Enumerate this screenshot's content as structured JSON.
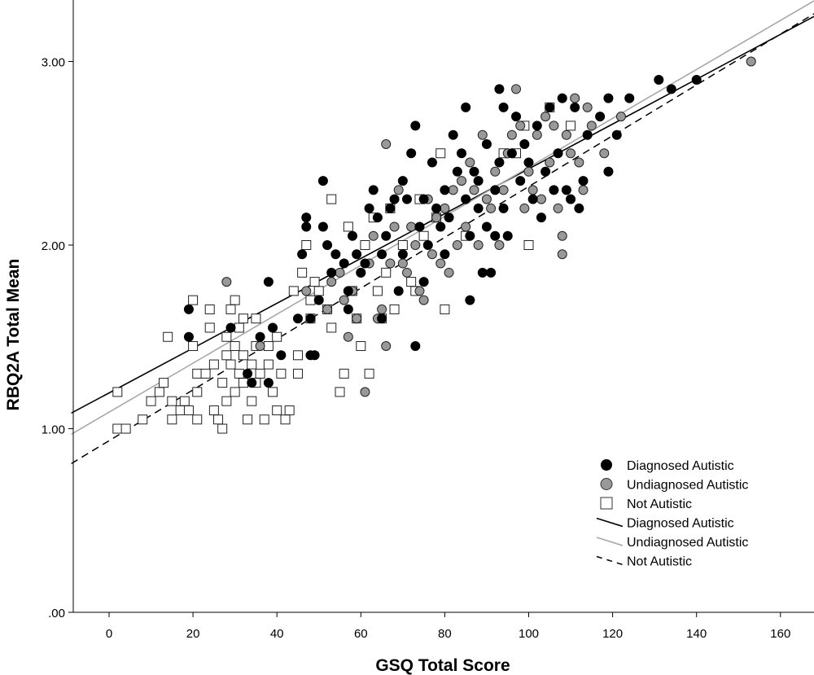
{
  "chart_data": {
    "type": "scatter",
    "xlabel": "GSQ Total Score",
    "ylabel": "RBQ2A Total Mean",
    "xlim": [
      -9,
      168
    ],
    "ylim": [
      0,
      3.33
    ],
    "x_ticks": [
      "0",
      "20",
      "40",
      "60",
      "80",
      "100",
      "120",
      "140",
      "160"
    ],
    "y_ticks": [
      ".00",
      "1.00",
      "2.00",
      "3.00"
    ],
    "grid": false,
    "legend_position": "bottom-right",
    "series": [
      {
        "name": "Diagnosed Autistic",
        "marker": "filled-circle",
        "color": "#000000",
        "points": [
          [
            19,
            1.65
          ],
          [
            19,
            1.5
          ],
          [
            29,
            1.55
          ],
          [
            33,
            1.3
          ],
          [
            34,
            1.25
          ],
          [
            36,
            1.5
          ],
          [
            38,
            1.8
          ],
          [
            38,
            1.25
          ],
          [
            39,
            1.55
          ],
          [
            41,
            1.4
          ],
          [
            45,
            1.6
          ],
          [
            46,
            1.95
          ],
          [
            47,
            2.15
          ],
          [
            47,
            2.1
          ],
          [
            48,
            1.6
          ],
          [
            48,
            1.4
          ],
          [
            49,
            1.4
          ],
          [
            50,
            1.7
          ],
          [
            51,
            2.35
          ],
          [
            51,
            2.1
          ],
          [
            52,
            2.0
          ],
          [
            53,
            1.85
          ],
          [
            54,
            1.95
          ],
          [
            56,
            1.9
          ],
          [
            57,
            1.75
          ],
          [
            57,
            1.65
          ],
          [
            58,
            2.05
          ],
          [
            59,
            1.95
          ],
          [
            60,
            1.85
          ],
          [
            61,
            1.9
          ],
          [
            62,
            2.2
          ],
          [
            63,
            2.3
          ],
          [
            64,
            2.15
          ],
          [
            65,
            1.95
          ],
          [
            65,
            1.6
          ],
          [
            66,
            2.05
          ],
          [
            67,
            2.2
          ],
          [
            68,
            2.25
          ],
          [
            69,
            1.75
          ],
          [
            70,
            2.35
          ],
          [
            70,
            1.95
          ],
          [
            71,
            2.25
          ],
          [
            72,
            2.5
          ],
          [
            73,
            2.65
          ],
          [
            73,
            1.45
          ],
          [
            74,
            2.1
          ],
          [
            75,
            2.25
          ],
          [
            75,
            1.8
          ],
          [
            76,
            2.0
          ],
          [
            77,
            2.45
          ],
          [
            78,
            2.2
          ],
          [
            79,
            2.1
          ],
          [
            80,
            2.3
          ],
          [
            80,
            1.95
          ],
          [
            81,
            2.15
          ],
          [
            82,
            2.6
          ],
          [
            83,
            2.4
          ],
          [
            84,
            2.5
          ],
          [
            85,
            2.75
          ],
          [
            85,
            2.25
          ],
          [
            86,
            2.05
          ],
          [
            86,
            1.7
          ],
          [
            87,
            2.4
          ],
          [
            88,
            2.35
          ],
          [
            88,
            2.2
          ],
          [
            89,
            1.85
          ],
          [
            90,
            2.55
          ],
          [
            90,
            2.1
          ],
          [
            91,
            1.85
          ],
          [
            92,
            2.3
          ],
          [
            92,
            2.05
          ],
          [
            93,
            2.85
          ],
          [
            93,
            2.45
          ],
          [
            94,
            2.75
          ],
          [
            94,
            2.2
          ],
          [
            95,
            2.05
          ],
          [
            96,
            2.5
          ],
          [
            97,
            2.7
          ],
          [
            98,
            2.35
          ],
          [
            99,
            2.55
          ],
          [
            100,
            2.45
          ],
          [
            101,
            2.25
          ],
          [
            102,
            2.65
          ],
          [
            103,
            2.15
          ],
          [
            104,
            2.4
          ],
          [
            105,
            2.75
          ],
          [
            106,
            2.3
          ],
          [
            107,
            2.5
          ],
          [
            108,
            2.8
          ],
          [
            109,
            2.3
          ],
          [
            110,
            2.25
          ],
          [
            111,
            2.75
          ],
          [
            112,
            2.2
          ],
          [
            113,
            2.35
          ],
          [
            114,
            2.6
          ],
          [
            117,
            2.7
          ],
          [
            119,
            2.8
          ],
          [
            119,
            2.4
          ],
          [
            121,
            2.6
          ],
          [
            124,
            2.8
          ],
          [
            131,
            2.9
          ],
          [
            134,
            2.85
          ],
          [
            140,
            2.9
          ]
        ]
      },
      {
        "name": "Undiagnosed Autistic",
        "marker": "gray-circle",
        "color": "#999999",
        "points": [
          [
            28,
            1.8
          ],
          [
            36,
            1.45
          ],
          [
            47,
            1.75
          ],
          [
            52,
            1.65
          ],
          [
            53,
            1.8
          ],
          [
            55,
            1.85
          ],
          [
            56,
            1.7
          ],
          [
            57,
            1.5
          ],
          [
            58,
            1.75
          ],
          [
            59,
            1.6
          ],
          [
            60,
            1.85
          ],
          [
            61,
            1.2
          ],
          [
            62,
            1.9
          ],
          [
            63,
            2.05
          ],
          [
            64,
            1.6
          ],
          [
            65,
            1.65
          ],
          [
            66,
            2.55
          ],
          [
            66,
            1.45
          ],
          [
            67,
            1.9
          ],
          [
            68,
            2.1
          ],
          [
            69,
            2.3
          ],
          [
            70,
            1.9
          ],
          [
            71,
            1.85
          ],
          [
            72,
            2.1
          ],
          [
            73,
            2.0
          ],
          [
            74,
            1.75
          ],
          [
            75,
            1.7
          ],
          [
            76,
            2.25
          ],
          [
            77,
            1.95
          ],
          [
            78,
            2.15
          ],
          [
            79,
            1.9
          ],
          [
            80,
            2.2
          ],
          [
            81,
            1.85
          ],
          [
            82,
            2.3
          ],
          [
            83,
            2.0
          ],
          [
            84,
            2.35
          ],
          [
            85,
            2.1
          ],
          [
            86,
            2.45
          ],
          [
            87,
            2.3
          ],
          [
            88,
            2.0
          ],
          [
            89,
            2.6
          ],
          [
            90,
            2.25
          ],
          [
            91,
            2.2
          ],
          [
            92,
            2.4
          ],
          [
            93,
            2.0
          ],
          [
            94,
            2.3
          ],
          [
            95,
            2.5
          ],
          [
            96,
            2.6
          ],
          [
            97,
            2.85
          ],
          [
            98,
            2.65
          ],
          [
            99,
            2.2
          ],
          [
            100,
            2.4
          ],
          [
            101,
            2.3
          ],
          [
            102,
            2.6
          ],
          [
            103,
            2.25
          ],
          [
            104,
            2.7
          ],
          [
            105,
            2.45
          ],
          [
            106,
            2.65
          ],
          [
            107,
            2.2
          ],
          [
            108,
            2.05
          ],
          [
            108,
            1.95
          ],
          [
            109,
            2.6
          ],
          [
            110,
            2.5
          ],
          [
            111,
            2.8
          ],
          [
            112,
            2.45
          ],
          [
            113,
            2.3
          ],
          [
            114,
            2.75
          ],
          [
            115,
            2.65
          ],
          [
            118,
            2.5
          ],
          [
            122,
            2.7
          ],
          [
            153,
            3.0
          ]
        ]
      },
      {
        "name": "Not Autistic",
        "marker": "open-square",
        "color": "#000000",
        "points": [
          [
            2,
            1.2
          ],
          [
            2,
            1.0
          ],
          [
            4,
            1.0
          ],
          [
            8,
            1.05
          ],
          [
            10,
            1.15
          ],
          [
            12,
            1.2
          ],
          [
            13,
            1.25
          ],
          [
            14,
            1.5
          ],
          [
            15,
            1.15
          ],
          [
            15,
            1.05
          ],
          [
            17,
            1.1
          ],
          [
            18,
            1.15
          ],
          [
            19,
            1.1
          ],
          [
            20,
            1.7
          ],
          [
            20,
            1.45
          ],
          [
            21,
            1.3
          ],
          [
            21,
            1.2
          ],
          [
            21,
            1.05
          ],
          [
            23,
            1.3
          ],
          [
            24,
            1.65
          ],
          [
            24,
            1.55
          ],
          [
            25,
            1.35
          ],
          [
            25,
            1.1
          ],
          [
            26,
            1.05
          ],
          [
            27,
            1.25
          ],
          [
            27,
            1.0
          ],
          [
            28,
            1.5
          ],
          [
            28,
            1.4
          ],
          [
            28,
            1.15
          ],
          [
            29,
            1.65
          ],
          [
            29,
            1.35
          ],
          [
            30,
            1.7
          ],
          [
            30,
            1.45
          ],
          [
            30,
            1.2
          ],
          [
            31,
            1.55
          ],
          [
            31,
            1.3
          ],
          [
            32,
            1.6
          ],
          [
            32,
            1.4
          ],
          [
            32,
            1.25
          ],
          [
            33,
            1.05
          ],
          [
            34,
            1.35
          ],
          [
            34,
            1.15
          ],
          [
            35,
            1.6
          ],
          [
            35,
            1.45
          ],
          [
            35,
            1.25
          ],
          [
            36,
            1.3
          ],
          [
            37,
            1.05
          ],
          [
            38,
            1.45
          ],
          [
            38,
            1.35
          ],
          [
            39,
            1.2
          ],
          [
            40,
            1.5
          ],
          [
            40,
            1.1
          ],
          [
            41,
            1.3
          ],
          [
            42,
            1.05
          ],
          [
            43,
            1.1
          ],
          [
            44,
            1.75
          ],
          [
            45,
            1.4
          ],
          [
            45,
            1.3
          ],
          [
            46,
            1.85
          ],
          [
            47,
            2.0
          ],
          [
            48,
            1.7
          ],
          [
            48,
            1.6
          ],
          [
            49,
            1.8
          ],
          [
            50,
            1.75
          ],
          [
            52,
            1.65
          ],
          [
            53,
            2.25
          ],
          [
            53,
            1.55
          ],
          [
            55,
            1.2
          ],
          [
            56,
            1.3
          ],
          [
            57,
            2.1
          ],
          [
            58,
            1.75
          ],
          [
            59,
            1.6
          ],
          [
            60,
            1.45
          ],
          [
            61,
            2.0
          ],
          [
            62,
            1.3
          ],
          [
            63,
            2.15
          ],
          [
            64,
            1.75
          ],
          [
            65,
            1.6
          ],
          [
            66,
            1.85
          ],
          [
            67,
            2.2
          ],
          [
            68,
            1.65
          ],
          [
            70,
            2.0
          ],
          [
            72,
            1.8
          ],
          [
            73,
            1.75
          ],
          [
            74,
            2.25
          ],
          [
            75,
            2.05
          ],
          [
            78,
            2.15
          ],
          [
            79,
            2.5
          ],
          [
            80,
            1.65
          ],
          [
            85,
            2.05
          ],
          [
            94,
            2.5
          ],
          [
            97,
            2.5
          ],
          [
            99,
            2.65
          ],
          [
            100,
            2.0
          ],
          [
            105,
            2.75
          ],
          [
            110,
            2.65
          ]
        ]
      }
    ],
    "fit_lines": [
      {
        "name": "Diagnosed Autistic",
        "style": "solid",
        "color": "#000000",
        "x": [
          -9,
          168
        ],
        "y": [
          1.085,
          3.245
        ]
      },
      {
        "name": "Undiagnosed Autistic",
        "style": "solid",
        "color": "#a8a8a8",
        "x": [
          -9,
          168
        ],
        "y": [
          0.97,
          3.33
        ]
      },
      {
        "name": "Not Autistic",
        "style": "dashed",
        "color": "#000000",
        "x": [
          -9,
          168
        ],
        "y": [
          0.81,
          3.26
        ]
      }
    ],
    "legend": [
      {
        "label": "Diagnosed Autistic",
        "symbol": "filled-circle"
      },
      {
        "label": "Undiagnosed Autistic",
        "symbol": "gray-circle"
      },
      {
        "label": "Not Autistic",
        "symbol": "open-square"
      },
      {
        "label": "Diagnosed Autistic",
        "symbol": "black-line"
      },
      {
        "label": "Undiagnosed Autistic",
        "symbol": "gray-line"
      },
      {
        "label": "Not Autistic",
        "symbol": "dashed-line"
      }
    ]
  }
}
